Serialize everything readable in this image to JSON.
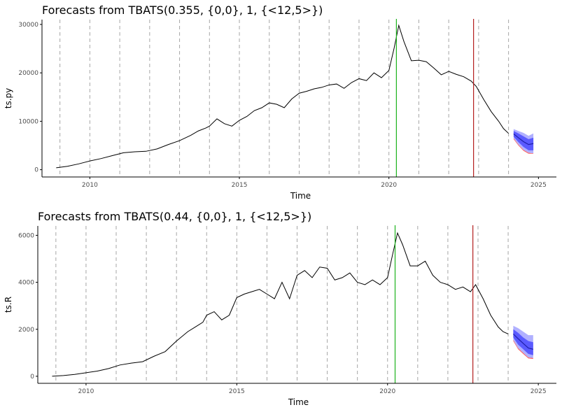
{
  "colors": {
    "series": "#000000",
    "forecast_mean": "#1f1fa8",
    "pi80": "#5a5aff",
    "pi95": "#b0b0ff",
    "bounds": "#ff6060",
    "vline_green": "#1db31d",
    "vline_red": "#b31d1d",
    "grid_dashed": "#a6a6a6",
    "axis": "#000000"
  },
  "chart_data": [
    {
      "type": "line",
      "title": "Forecasts from TBATS(0.355, {0,0}, 1, {<12,5>})",
      "xlabel": "Time",
      "ylabel": "ts.py",
      "xlim": [
        2008.4,
        2025.6
      ],
      "ylim": [
        -1500,
        31000
      ],
      "x_ticks": [
        2010,
        2015,
        2020,
        2025
      ],
      "x_tick_labels": [
        "2010",
        "2015",
        "2020",
        "2025"
      ],
      "y_ticks": [
        0,
        10000,
        20000,
        30000
      ],
      "y_tick_labels": [
        "0",
        "10000",
        "20000",
        "30000"
      ],
      "grid": "none",
      "dashed_vlines": [
        2009,
        2010,
        2011,
        2012,
        2013,
        2014,
        2015,
        2016,
        2017,
        2018,
        2019,
        2020,
        2021,
        2022,
        2023,
        2024
      ],
      "vlines": [
        {
          "x": 2020.25,
          "color": "green"
        },
        {
          "x": 2022.83,
          "color": "red"
        }
      ],
      "series": [
        {
          "x": [
            2008.875,
            2009.25,
            2009.625,
            2010.0,
            2010.375,
            2010.75,
            2011.125,
            2011.5,
            2011.875,
            2012.25,
            2012.625,
            2013.0,
            2013.375,
            2013.625,
            2013.875,
            2014.0,
            2014.25,
            2014.5,
            2014.75,
            2015.0,
            2015.25,
            2015.5,
            2015.75,
            2016.0,
            2016.25,
            2016.5,
            2016.75,
            2017.0,
            2017.25,
            2017.5,
            2017.75,
            2018.0,
            2018.25,
            2018.5,
            2018.75,
            2019.0,
            2019.25,
            2019.5,
            2019.75,
            2020.0,
            2020.17,
            2020.33,
            2020.5,
            2020.75,
            2021.0,
            2021.25,
            2021.5,
            2021.75,
            2022.0,
            2022.25,
            2022.5,
            2022.75,
            2022.92,
            2023.17,
            2023.42,
            2023.67,
            2023.83,
            2024.0
          ],
          "y": [
            400,
            700,
            1200,
            1800,
            2300,
            2900,
            3500,
            3700,
            3800,
            4300,
            5200,
            6000,
            7100,
            8000,
            8600,
            9000,
            10500,
            9500,
            9000,
            10200,
            11000,
            12200,
            12800,
            13800,
            13500,
            12800,
            14600,
            15800,
            16200,
            16700,
            17000,
            17500,
            17700,
            16800,
            18000,
            18800,
            18400,
            20000,
            19000,
            20500,
            25000,
            29800,
            26500,
            22500,
            22600,
            22300,
            21000,
            19600,
            20300,
            19700,
            19200,
            18300,
            17200,
            14500,
            12000,
            10000,
            8500,
            7500
          ]
        }
      ],
      "forecast": {
        "x": [
          2024.17,
          2024.33,
          2024.5,
          2024.67,
          2024.83
        ],
        "mean": [
          7400,
          6600,
          5800,
          5200,
          5400
        ],
        "lo80": [
          6800,
          5700,
          4700,
          4000,
          4000
        ],
        "hi80": [
          8000,
          7500,
          6900,
          6300,
          6600
        ],
        "lo95": [
          6500,
          5200,
          4100,
          3500,
          3400
        ],
        "hi95": [
          8400,
          8000,
          7600,
          7000,
          7500
        ],
        "red_lower": [
          6300,
          5000,
          3900,
          3300,
          3300
        ]
      }
    },
    {
      "type": "line",
      "title": "Forecasts from TBATS(0.44, {0,0}, 1, {<12,5>})",
      "xlabel": "Time",
      "ylabel": "ts.R",
      "xlim": [
        2008.4,
        2025.6
      ],
      "ylim": [
        -300,
        6400
      ],
      "x_ticks": [
        2010,
        2015,
        2020,
        2025
      ],
      "x_tick_labels": [
        "2010",
        "2015",
        "2020",
        "2025"
      ],
      "y_ticks": [
        0,
        2000,
        4000,
        6000
      ],
      "y_tick_labels": [
        "0",
        "2000",
        "4000",
        "6000"
      ],
      "grid": "none",
      "dashed_vlines": [
        2009,
        2010,
        2011,
        2012,
        2013,
        2014,
        2015,
        2016,
        2017,
        2018,
        2019,
        2020,
        2021,
        2022,
        2023,
        2024
      ],
      "vlines": [
        {
          "x": 2020.25,
          "color": "green"
        },
        {
          "x": 2022.83,
          "color": "red"
        }
      ],
      "series": [
        {
          "x": [
            2008.875,
            2009.25,
            2009.625,
            2010.0,
            2010.375,
            2010.75,
            2011.125,
            2011.5,
            2011.875,
            2012.25,
            2012.625,
            2013.0,
            2013.375,
            2013.625,
            2013.875,
            2014.0,
            2014.25,
            2014.5,
            2014.75,
            2015.0,
            2015.25,
            2015.5,
            2015.75,
            2016.0,
            2016.25,
            2016.5,
            2016.75,
            2017.0,
            2017.25,
            2017.5,
            2017.75,
            2018.0,
            2018.25,
            2018.5,
            2018.75,
            2019.0,
            2019.25,
            2019.5,
            2019.75,
            2020.0,
            2020.17,
            2020.33,
            2020.5,
            2020.75,
            2021.0,
            2021.25,
            2021.5,
            2021.75,
            2022.0,
            2022.25,
            2022.5,
            2022.75,
            2022.92,
            2023.17,
            2023.42,
            2023.67,
            2023.83,
            2024.0
          ],
          "y": [
            0,
            30,
            80,
            150,
            220,
            330,
            480,
            560,
            620,
            850,
            1050,
            1500,
            1900,
            2100,
            2300,
            2600,
            2750,
            2400,
            2600,
            3350,
            3500,
            3600,
            3700,
            3500,
            3300,
            4000,
            3300,
            4300,
            4500,
            4200,
            4650,
            4600,
            4100,
            4200,
            4400,
            4000,
            3900,
            4100,
            3900,
            4200,
            5200,
            6100,
            5600,
            4700,
            4700,
            4900,
            4300,
            4000,
            3900,
            3700,
            3800,
            3600,
            3900,
            3300,
            2600,
            2100,
            1900,
            1800
          ]
        }
      ],
      "forecast": {
        "x": [
          2024.17,
          2024.33,
          2024.5,
          2024.67,
          2024.83
        ],
        "mean": [
          1800,
          1600,
          1400,
          1200,
          1150
        ],
        "lo80": [
          1650,
          1350,
          1150,
          950,
          900
        ],
        "hi80": [
          2000,
          1850,
          1650,
          1500,
          1450
        ],
        "lo95": [
          1550,
          1200,
          1000,
          800,
          780
        ],
        "hi95": [
          2150,
          2050,
          1900,
          1750,
          1750
        ],
        "red_lower": [
          1500,
          1150,
          950,
          760,
          740
        ]
      }
    }
  ]
}
